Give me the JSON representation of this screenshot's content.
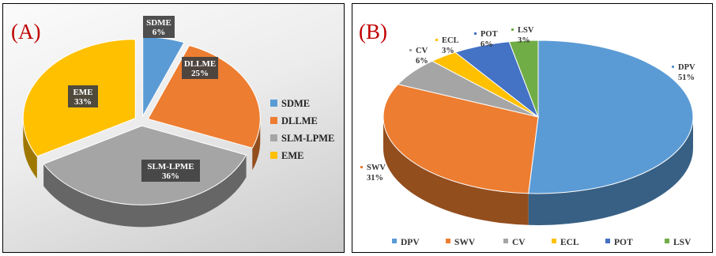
{
  "chart_data": [
    {
      "type": "pie",
      "panel_label": "(A)",
      "categories": [
        "SDME",
        "DLLME",
        "SLM-LPME",
        "EME"
      ],
      "values": [
        6,
        25,
        36,
        33
      ],
      "value_labels": [
        "6%",
        "25%",
        "36%",
        "33%"
      ],
      "colors": [
        "#5b9bd5",
        "#ed7d31",
        "#a5a5a5",
        "#ffc000"
      ],
      "legend": [
        "SDME",
        "DLLME",
        "SLM-LPME",
        "EME"
      ],
      "legend_position": "right",
      "style": "3d-exploded"
    },
    {
      "type": "pie",
      "panel_label": "(B)",
      "categories": [
        "DPV",
        "SWV",
        "CV",
        "ECL",
        "POT",
        "LSV"
      ],
      "values": [
        51,
        31,
        6,
        3,
        6,
        3
      ],
      "value_labels": [
        "51%",
        "31%",
        "6%",
        "3%",
        "6%",
        "3%"
      ],
      "colors": [
        "#5b9bd5",
        "#ed7d31",
        "#a5a5a5",
        "#ffc000",
        "#4472c4",
        "#70ad47"
      ],
      "legend": [
        "DPV",
        "SWV",
        "CV",
        "ECL",
        "POT",
        "LSV"
      ],
      "legend_position": "bottom",
      "style": "3d"
    }
  ]
}
